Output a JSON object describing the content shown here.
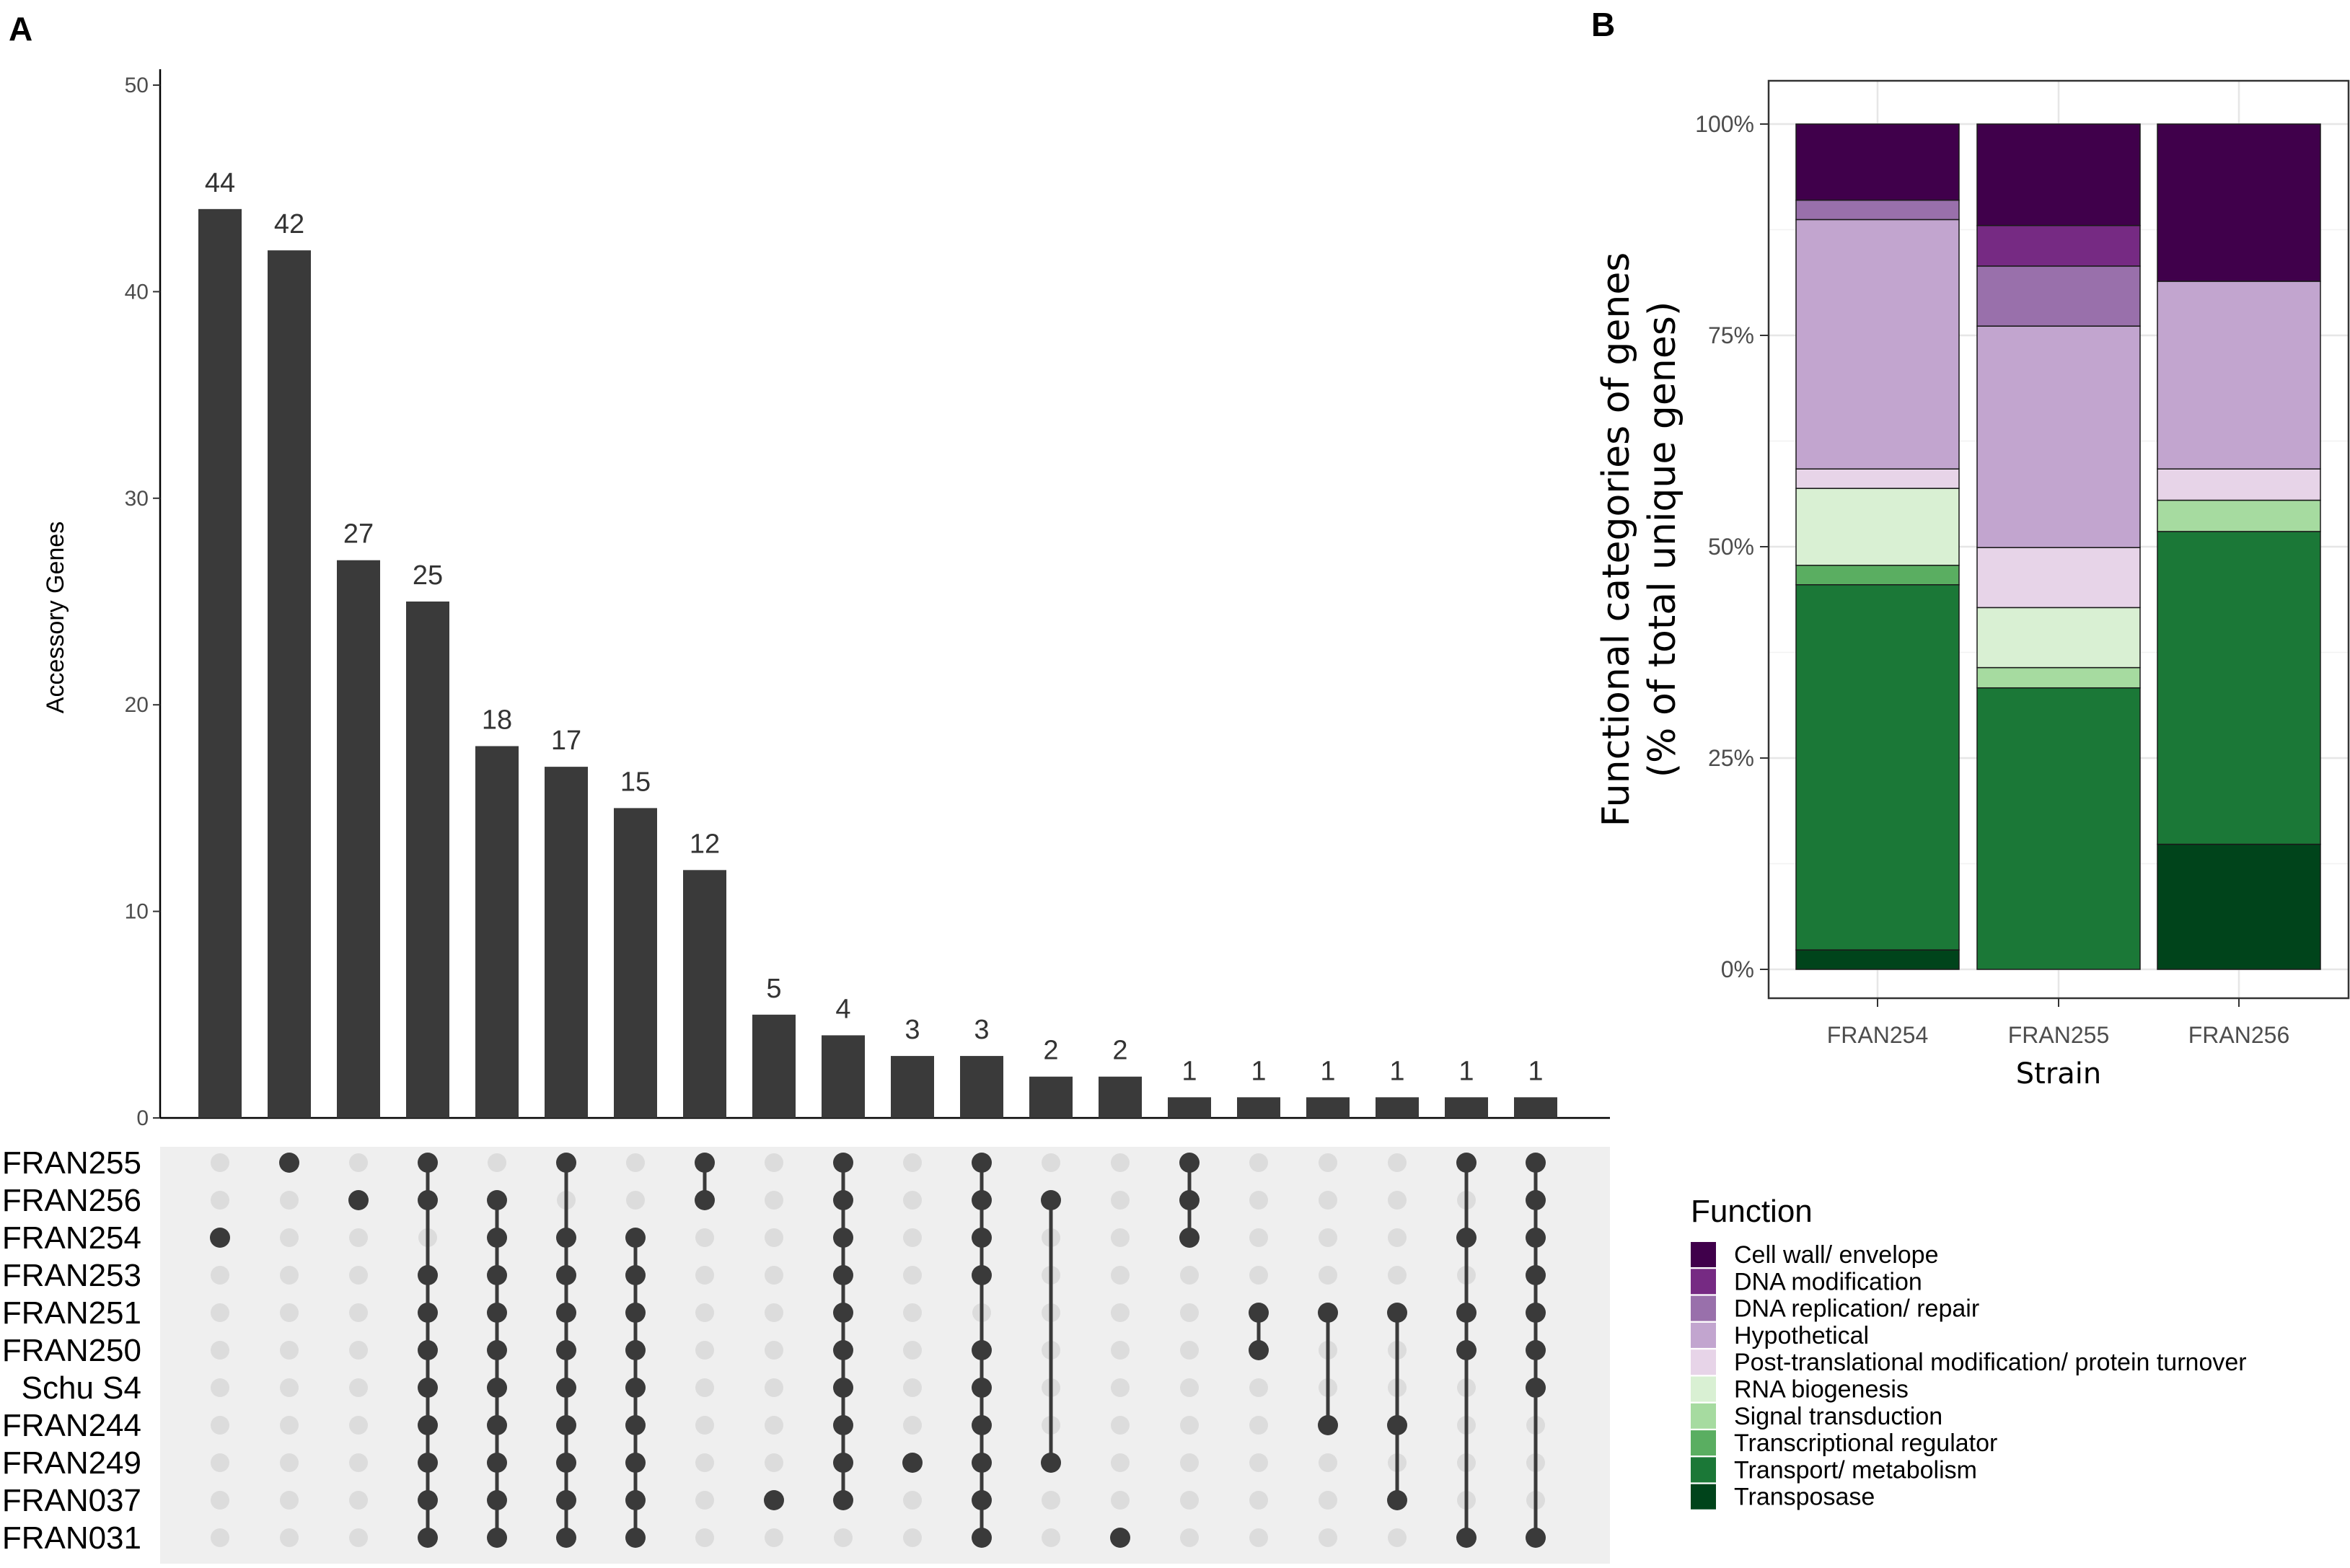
{
  "panels": {
    "a_label": "A",
    "b_label": "B"
  },
  "colors": {
    "bar": "#3a3a3a",
    "dot_active": "#3a3a3a",
    "dot_inactive": "#dcdcdc",
    "matrix_bg": "#efefef",
    "Cell wall/ envelope": "#40004b",
    "DNA modification": "#762a83",
    "DNA replication/ repair": "#9970ab",
    "Hypothetical": "#c2a5cf",
    "Post-translational modification/ protein turnover": "#e7d4e8",
    "RNA biogenesis": "#d9f0d3",
    "Signal transduction": "#a6dba0",
    "Transcriptional regulator": "#5aae61",
    "Transport/ metabolism": "#1b7837",
    "Transposase": "#00441b"
  },
  "chart_data": [
    {
      "type": "bar",
      "chart": "upset",
      "ylabel": "Accessory Genes",
      "ylim": [
        0,
        50
      ],
      "yticks": [
        0,
        10,
        20,
        30,
        40,
        50
      ],
      "values": [
        44,
        42,
        27,
        25,
        18,
        17,
        15,
        12,
        5,
        4,
        3,
        3,
        2,
        2,
        1,
        1,
        1,
        1,
        1,
        1
      ],
      "sets": [
        "FRAN255",
        "FRAN256",
        "FRAN254",
        "FRAN253",
        "FRAN251",
        "FRAN250",
        "Schu S4",
        "FRAN244",
        "FRAN249",
        "FRAN037",
        "FRAN031"
      ],
      "intersections": [
        [
          "FRAN254"
        ],
        [
          "FRAN255"
        ],
        [
          "FRAN256"
        ],
        [
          "FRAN255",
          "FRAN256",
          "FRAN253",
          "FRAN251",
          "FRAN250",
          "Schu S4",
          "FRAN244",
          "FRAN249",
          "FRAN037",
          "FRAN031"
        ],
        [
          "FRAN256",
          "FRAN254",
          "FRAN253",
          "FRAN251",
          "FRAN250",
          "Schu S4",
          "FRAN244",
          "FRAN249",
          "FRAN037",
          "FRAN031"
        ],
        [
          "FRAN255",
          "FRAN254",
          "FRAN253",
          "FRAN251",
          "FRAN250",
          "Schu S4",
          "FRAN244",
          "FRAN249",
          "FRAN037",
          "FRAN031"
        ],
        [
          "FRAN254",
          "FRAN253",
          "FRAN251",
          "FRAN250",
          "Schu S4",
          "FRAN244",
          "FRAN249",
          "FRAN037",
          "FRAN031"
        ],
        [
          "FRAN255",
          "FRAN256"
        ],
        [
          "FRAN037"
        ],
        [
          "FRAN255",
          "FRAN256",
          "FRAN254",
          "FRAN253",
          "FRAN251",
          "FRAN250",
          "Schu S4",
          "FRAN244",
          "FRAN249",
          "FRAN037"
        ],
        [
          "FRAN249"
        ],
        [
          "FRAN255",
          "FRAN256",
          "FRAN254",
          "FRAN253",
          "FRAN250",
          "Schu S4",
          "FRAN244",
          "FRAN249",
          "FRAN037",
          "FRAN031"
        ],
        [
          "FRAN256",
          "FRAN249"
        ],
        [
          "FRAN031"
        ],
        [
          "FRAN255",
          "FRAN256",
          "FRAN254"
        ],
        [
          "FRAN251",
          "FRAN250"
        ],
        [
          "FRAN251",
          "FRAN244"
        ],
        [
          "FRAN251",
          "FRAN244",
          "FRAN037"
        ],
        [
          "FRAN255",
          "FRAN254",
          "FRAN251",
          "FRAN250",
          "FRAN031"
        ],
        [
          "FRAN255",
          "FRAN256",
          "FRAN254",
          "FRAN253",
          "FRAN251",
          "FRAN250",
          "Schu S4",
          "FRAN031"
        ]
      ]
    },
    {
      "type": "bar",
      "stacked": true,
      "percent": true,
      "xlabel": "Strain",
      "ylabel_line1": "Functional categories of genes",
      "ylabel_line2": "(% of total unique genes)",
      "ylim": [
        0,
        100
      ],
      "ytick_labels": [
        "0%",
        "25%",
        "50%",
        "75%",
        "100%"
      ],
      "categories": [
        "FRAN254",
        "FRAN255",
        "FRAN256"
      ],
      "legend_title": "Function",
      "legend_position": "bottom-right",
      "series": [
        {
          "name": "Transposase",
          "values": [
            2.3,
            0,
            14.8
          ]
        },
        {
          "name": "Transport/ metabolism",
          "values": [
            43.2,
            33.3,
            37.0
          ]
        },
        {
          "name": "Transcriptional regulator",
          "values": [
            2.3,
            0,
            0
          ]
        },
        {
          "name": "Signal transduction",
          "values": [
            0,
            2.4,
            3.7
          ]
        },
        {
          "name": "RNA biogenesis",
          "values": [
            9.1,
            7.1,
            0
          ]
        },
        {
          "name": "Post-translational modification/ protein turnover",
          "values": [
            2.3,
            7.1,
            3.7
          ]
        },
        {
          "name": "Hypothetical",
          "values": [
            29.5,
            26.2,
            22.2
          ]
        },
        {
          "name": "DNA replication/ repair",
          "values": [
            2.3,
            7.1,
            0
          ]
        },
        {
          "name": "DNA modification",
          "values": [
            0,
            4.8,
            0
          ]
        },
        {
          "name": "Cell wall/ envelope",
          "values": [
            9.0,
            12.0,
            18.6
          ]
        }
      ]
    }
  ]
}
